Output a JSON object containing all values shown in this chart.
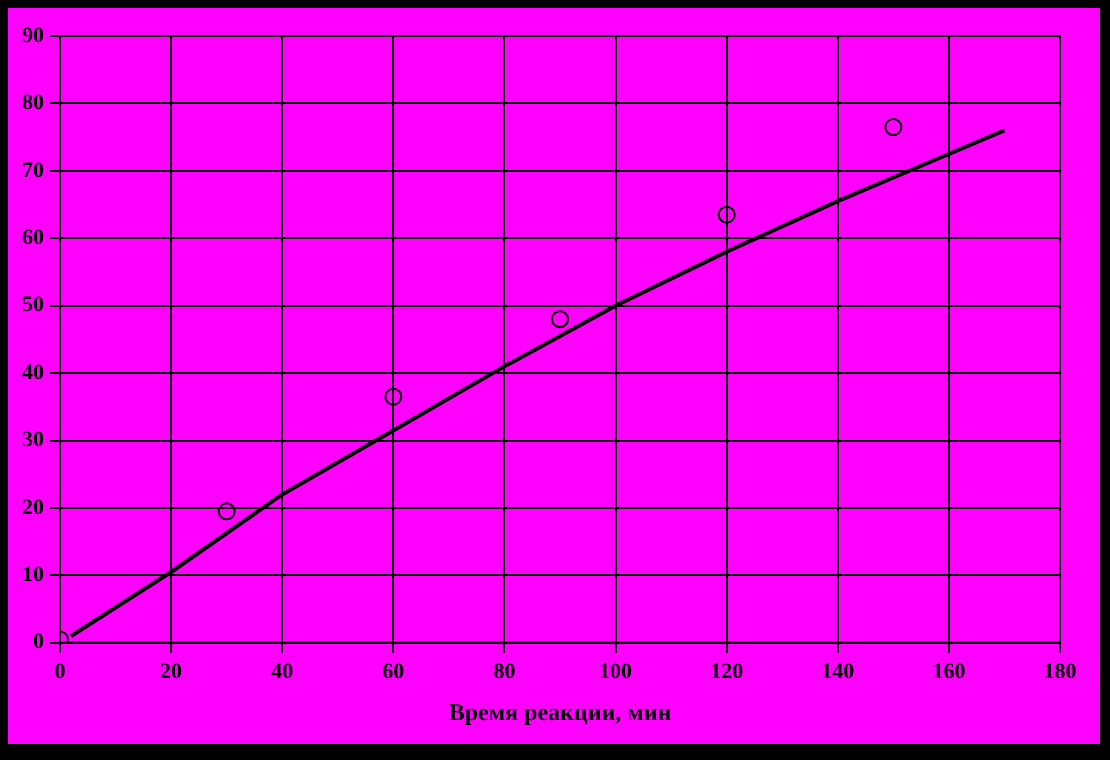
{
  "chart_data": {
    "type": "scatter",
    "xlabel": "Время реакции, мин",
    "xlim": [
      0,
      180
    ],
    "xticks": [
      0,
      20,
      40,
      60,
      80,
      100,
      120,
      140,
      160,
      180
    ],
    "ylim": [
      0,
      90
    ],
    "yticks": [
      0,
      10,
      20,
      30,
      40,
      50,
      60,
      70,
      80,
      90
    ],
    "grid": true,
    "legend": false,
    "series": [
      {
        "color": "#000000",
        "marker": "circle",
        "x": [
          0,
          30,
          60,
          90,
          120,
          150
        ],
        "values": [
          0.5,
          19.5,
          36.5,
          48,
          63.5,
          76.5
        ]
      },
      {
        "type": "line",
        "color": "#000000",
        "marker": "none",
        "line_style": "solid",
        "x": [
          2,
          20,
          40,
          60,
          80,
          100,
          120,
          140,
          160,
          170
        ],
        "values": [
          1,
          10.5,
          22,
          31.5,
          41,
          50,
          58,
          65.5,
          72.5,
          76
        ]
      }
    ]
  }
}
